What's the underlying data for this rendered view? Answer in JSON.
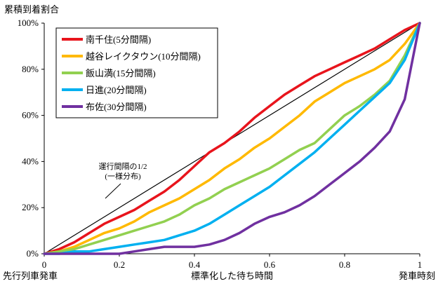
{
  "chart_data": {
    "type": "line",
    "ylabel": "累積到着割合",
    "xlabel": "標準化した待ち時間",
    "x_label_left": "先行列車発車",
    "x_label_right": "発車時刻",
    "xlim": [
      0,
      1
    ],
    "ylim": [
      0,
      1
    ],
    "x_ticks": [
      0,
      0.2,
      0.4,
      0.6,
      0.8,
      1
    ],
    "x_tick_labels": [
      "0",
      "0.2",
      "0.4",
      "0.6",
      "0.8",
      "1"
    ],
    "y_ticks": [
      0,
      0.2,
      0.4,
      0.6,
      0.8,
      1
    ],
    "y_tick_labels": [
      "0%",
      "20%",
      "40%",
      "60%",
      "80%",
      "100%"
    ],
    "grid": false,
    "legend_position": "top-left",
    "reference_line": {
      "x": [
        0,
        1
      ],
      "y": [
        0,
        1
      ],
      "color": "#000000",
      "annotation": [
        "運行間隔の1/2",
        "(一様分布)"
      ]
    },
    "series": [
      {
        "name": "南千住(5分間隔)",
        "color": "#e8141c",
        "x": [
          0,
          0.04,
          0.08,
          0.12,
          0.16,
          0.2,
          0.24,
          0.28,
          0.32,
          0.36,
          0.4,
          0.44,
          0.48,
          0.52,
          0.56,
          0.6,
          0.64,
          0.68,
          0.72,
          0.76,
          0.8,
          0.84,
          0.88,
          0.92,
          0.96,
          1.0
        ],
        "y": [
          0,
          0.02,
          0.05,
          0.09,
          0.13,
          0.16,
          0.19,
          0.23,
          0.27,
          0.32,
          0.38,
          0.44,
          0.48,
          0.53,
          0.59,
          0.64,
          0.69,
          0.73,
          0.77,
          0.8,
          0.83,
          0.86,
          0.89,
          0.93,
          0.97,
          1.0
        ]
      },
      {
        "name": "越谷レイクタウン(10分間隔)",
        "color": "#ffb900",
        "x": [
          0,
          0.04,
          0.08,
          0.12,
          0.16,
          0.2,
          0.24,
          0.28,
          0.32,
          0.36,
          0.4,
          0.44,
          0.48,
          0.52,
          0.56,
          0.6,
          0.64,
          0.68,
          0.72,
          0.76,
          0.8,
          0.84,
          0.88,
          0.92,
          0.96,
          1.0
        ],
        "y": [
          0,
          0.01,
          0.03,
          0.06,
          0.09,
          0.11,
          0.14,
          0.18,
          0.21,
          0.24,
          0.28,
          0.32,
          0.37,
          0.41,
          0.46,
          0.5,
          0.55,
          0.6,
          0.66,
          0.7,
          0.74,
          0.77,
          0.8,
          0.84,
          0.91,
          1.0
        ]
      },
      {
        "name": "飯山満(15分間隔)",
        "color": "#92d050",
        "x": [
          0,
          0.04,
          0.08,
          0.12,
          0.16,
          0.2,
          0.24,
          0.28,
          0.32,
          0.36,
          0.4,
          0.44,
          0.48,
          0.52,
          0.56,
          0.6,
          0.64,
          0.68,
          0.72,
          0.76,
          0.8,
          0.84,
          0.88,
          0.92,
          0.96,
          1.0
        ],
        "y": [
          0,
          0.01,
          0.02,
          0.04,
          0.06,
          0.08,
          0.1,
          0.12,
          0.14,
          0.17,
          0.21,
          0.24,
          0.28,
          0.31,
          0.34,
          0.37,
          0.41,
          0.45,
          0.48,
          0.54,
          0.6,
          0.64,
          0.69,
          0.75,
          0.86,
          1.0
        ]
      },
      {
        "name": "日進(20分間隔)",
        "color": "#00b0f0",
        "x": [
          0,
          0.04,
          0.08,
          0.12,
          0.16,
          0.2,
          0.24,
          0.28,
          0.32,
          0.36,
          0.4,
          0.44,
          0.48,
          0.52,
          0.56,
          0.6,
          0.64,
          0.68,
          0.72,
          0.76,
          0.8,
          0.84,
          0.88,
          0.92,
          0.96,
          1.0
        ],
        "y": [
          0,
          0.0,
          0.01,
          0.01,
          0.02,
          0.03,
          0.04,
          0.05,
          0.06,
          0.08,
          0.1,
          0.13,
          0.17,
          0.21,
          0.25,
          0.29,
          0.34,
          0.39,
          0.44,
          0.5,
          0.56,
          0.62,
          0.68,
          0.74,
          0.84,
          1.0
        ]
      },
      {
        "name": "布佐(30分間隔)",
        "color": "#7030a0",
        "x": [
          0,
          0.04,
          0.08,
          0.12,
          0.16,
          0.2,
          0.24,
          0.28,
          0.32,
          0.36,
          0.4,
          0.44,
          0.48,
          0.52,
          0.56,
          0.6,
          0.64,
          0.68,
          0.72,
          0.76,
          0.8,
          0.84,
          0.88,
          0.92,
          0.96,
          1.0
        ],
        "y": [
          0,
          0,
          0,
          0,
          0,
          0,
          0.01,
          0.02,
          0.03,
          0.03,
          0.03,
          0.04,
          0.06,
          0.09,
          0.13,
          0.16,
          0.18,
          0.21,
          0.25,
          0.3,
          0.35,
          0.4,
          0.46,
          0.53,
          0.67,
          1.0
        ]
      }
    ]
  }
}
